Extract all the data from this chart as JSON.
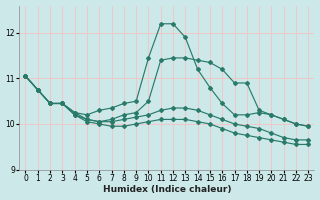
{
  "xlabel": "Humidex (Indice chaleur)",
  "bg_color": "#cce8e8",
  "grid_color": "#f0c8c8",
  "line_color": "#2a7a6a",
  "xlim": [
    -0.5,
    23.5
  ],
  "ylim": [
    9.0,
    12.6
  ],
  "yticks": [
    9,
    10,
    11,
    12
  ],
  "xticks": [
    0,
    1,
    2,
    3,
    4,
    5,
    6,
    7,
    8,
    9,
    10,
    11,
    12,
    13,
    14,
    15,
    16,
    17,
    18,
    19,
    20,
    21,
    22,
    23
  ],
  "series": [
    [
      11.05,
      10.75,
      10.45,
      10.45,
      10.25,
      10.2,
      10.3,
      10.35,
      10.45,
      10.5,
      11.45,
      12.2,
      12.2,
      11.9,
      11.2,
      10.8,
      10.45,
      10.2,
      10.2,
      10.25,
      10.2,
      10.1,
      10.0,
      9.95
    ],
    [
      11.05,
      10.75,
      10.45,
      10.45,
      10.25,
      10.1,
      10.05,
      10.1,
      10.2,
      10.25,
      10.5,
      11.4,
      11.45,
      11.45,
      11.4,
      11.35,
      11.2,
      10.9,
      10.9,
      10.3,
      10.2,
      10.1,
      10.0,
      9.95
    ],
    [
      11.05,
      10.75,
      10.45,
      10.45,
      10.2,
      10.1,
      10.05,
      10.05,
      10.1,
      10.15,
      10.2,
      10.3,
      10.35,
      10.35,
      10.3,
      10.2,
      10.1,
      10.0,
      9.95,
      9.9,
      9.8,
      9.7,
      9.65,
      9.65
    ],
    [
      11.05,
      10.75,
      10.45,
      10.45,
      10.2,
      10.05,
      10.0,
      9.95,
      9.95,
      10.0,
      10.05,
      10.1,
      10.1,
      10.1,
      10.05,
      10.0,
      9.9,
      9.8,
      9.75,
      9.7,
      9.65,
      9.6,
      9.55,
      9.55
    ]
  ]
}
